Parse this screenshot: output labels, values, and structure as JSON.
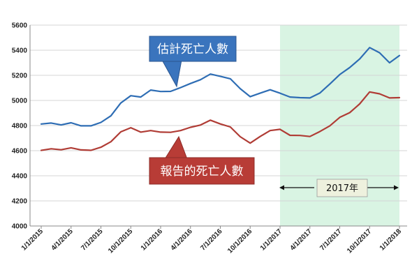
{
  "chart_data": {
    "type": "line",
    "x_tick_labels": [
      "1/1/2015",
      "4/1/2015",
      "7/1/2015",
      "10/1/2015",
      "1/1/2016",
      "4/1/2016",
      "7/1/2016",
      "10/1/2016",
      "1/1/2017",
      "4/1/2017",
      "7/1/2017",
      "10/1/2017",
      "1/1/2018"
    ],
    "ylim": [
      4000,
      5600
    ],
    "y_ticks": [
      4000,
      4200,
      4400,
      4600,
      4800,
      5000,
      5200,
      5400,
      5600
    ],
    "grid": "horizontal",
    "x": [
      "1/1/2015",
      "2/1/2015",
      "3/1/2015",
      "4/1/2015",
      "5/1/2015",
      "6/1/2015",
      "7/1/2015",
      "8/1/2015",
      "9/1/2015",
      "10/1/2015",
      "11/1/2015",
      "12/1/2015",
      "1/1/2016",
      "2/1/2016",
      "3/1/2016",
      "4/1/2016",
      "5/1/2016",
      "6/1/2016",
      "7/1/2016",
      "8/1/2016",
      "9/1/2016",
      "10/1/2016",
      "11/1/2016",
      "12/1/2016",
      "1/1/2017",
      "2/1/2017",
      "3/1/2017",
      "4/1/2017",
      "5/1/2017",
      "6/1/2017",
      "7/1/2017",
      "8/1/2017",
      "9/1/2017",
      "10/1/2017",
      "11/1/2017",
      "12/1/2017",
      "1/1/2018"
    ],
    "series": [
      {
        "name": "估計死亡人數",
        "color": "#2e6db4",
        "values": [
          4812,
          4820,
          4805,
          4822,
          4798,
          4798,
          4825,
          4877,
          4980,
          5038,
          5027,
          5083,
          5071,
          5072,
          5102,
          5135,
          5165,
          5210,
          5192,
          5173,
          5094,
          5030,
          5058,
          5085,
          5058,
          5027,
          5022,
          5020,
          5059,
          5131,
          5206,
          5262,
          5330,
          5421,
          5380,
          5300,
          5358
        ]
      },
      {
        "name": "報告的死亡人數",
        "color": "#b03c35",
        "values": [
          4602,
          4615,
          4607,
          4623,
          4606,
          4603,
          4627,
          4671,
          4750,
          4783,
          4748,
          4760,
          4748,
          4746,
          4760,
          4786,
          4804,
          4843,
          4813,
          4789,
          4711,
          4660,
          4713,
          4760,
          4770,
          4722,
          4721,
          4713,
          4752,
          4798,
          4865,
          4903,
          4972,
          5068,
          5053,
          5020,
          5022
        ]
      }
    ],
    "callouts": {
      "estimated": "估計死亡人數",
      "reported": "報告的死亡人數"
    },
    "highlight": {
      "label": "2017年",
      "from": "1/1/2017",
      "to": "1/1/2018",
      "color": "#d9f4e3"
    }
  }
}
